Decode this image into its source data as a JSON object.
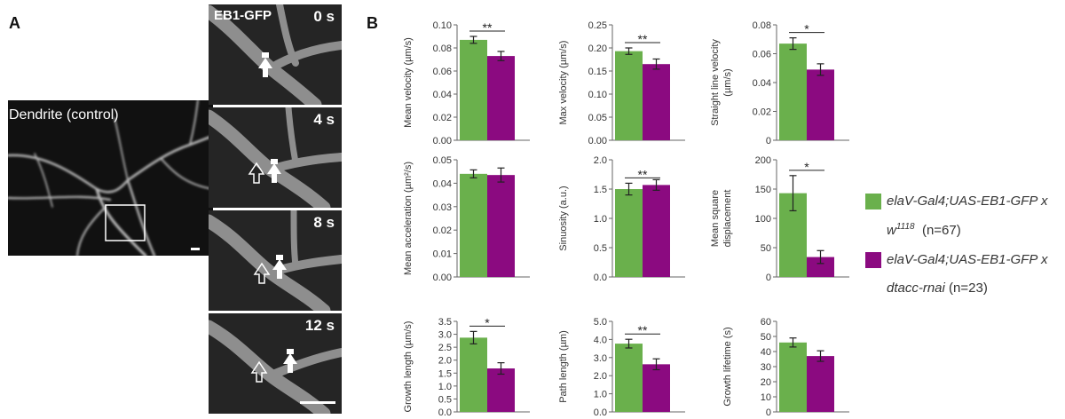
{
  "panel_a_label": "A",
  "panel_b_label": "B",
  "micrograph_title": "Dendrite (control)",
  "timelapse_title": "EB1-GFP",
  "frames": [
    "0 s",
    "4 s",
    "8 s",
    "12 s"
  ],
  "legend": {
    "control_line1": "elaV-Gal4;UAS-EB1-GFP x",
    "control_line2_genotype": "w",
    "control_line2_sup": "1118",
    "control_n": "(n=67)",
    "rnai_line1": "elaV-Gal4;UAS-EB1-GFP x",
    "rnai_line2_genotype": "dtacc-rnai",
    "rnai_n": "(n=23)"
  },
  "colors": {
    "control": "#6ab04c",
    "rnai": "#8b0a80"
  },
  "chart_data": [
    {
      "type": "bar",
      "ylabel_lines": [
        "Mean velocity (µm/s)"
      ],
      "ylim": [
        0,
        0.1
      ],
      "ticks": [
        "0.00",
        "0.02",
        "0.04",
        "0.06",
        "0.08",
        "0.10"
      ],
      "values": [
        0.087,
        0.073
      ],
      "errors": [
        0.003,
        0.004
      ],
      "sig": "**"
    },
    {
      "type": "bar",
      "ylabel_lines": [
        "Max velocity (µm/s)"
      ],
      "ylim": [
        0,
        0.25
      ],
      "ticks": [
        "0.00",
        "0.05",
        "0.10",
        "0.15",
        "0.20",
        "0.25"
      ],
      "values": [
        0.193,
        0.165
      ],
      "errors": [
        0.007,
        0.011
      ],
      "sig": "**"
    },
    {
      "type": "bar",
      "ylabel_lines": [
        "Straight line velocity",
        "(µm/s)"
      ],
      "ylim": [
        0,
        0.08
      ],
      "ticks": [
        "0",
        "0.02",
        "0.04",
        "0.06",
        "0.08"
      ],
      "values": [
        0.067,
        0.049
      ],
      "errors": [
        0.004,
        0.004
      ],
      "sig": "*"
    },
    {
      "type": "bar",
      "ylabel_lines": [
        "Mean acceleration (µm²/s)"
      ],
      "ylim": [
        0,
        0.05
      ],
      "ticks": [
        "0.00",
        "0.01",
        "0.02",
        "0.03",
        "0.04",
        "0.05"
      ],
      "values": [
        0.044,
        0.0435
      ],
      "errors": [
        0.0017,
        0.003
      ],
      "sig": ""
    },
    {
      "type": "bar",
      "ylabel_lines": [
        "Sinuosity (a.u.)"
      ],
      "ylim": [
        0,
        2.0
      ],
      "ticks": [
        "0.0",
        "0.5",
        "1.0",
        "1.5",
        "2.0"
      ],
      "values": [
        1.5,
        1.57
      ],
      "errors": [
        0.1,
        0.09
      ],
      "sig": "**"
    },
    {
      "type": "bar",
      "ylabel_lines": [
        "Mean square",
        "displacement"
      ],
      "ylim": [
        0,
        200
      ],
      "ticks": [
        "0",
        "50",
        "100",
        "150",
        "200"
      ],
      "values": [
        143,
        34
      ],
      "errors": [
        30,
        11
      ],
      "sig": "*"
    },
    {
      "type": "bar",
      "ylabel_lines": [
        "Growth length (µm/s)"
      ],
      "ylim": [
        0,
        3.5
      ],
      "ticks": [
        "0.0",
        "0.5",
        "1.0",
        "1.5",
        "2.0",
        "2.5",
        "3.0",
        "3.5"
      ],
      "values": [
        2.87,
        1.68
      ],
      "errors": [
        0.24,
        0.22
      ],
      "sig": "*"
    },
    {
      "type": "bar",
      "ylabel_lines": [
        "Path length (µm)"
      ],
      "ylim": [
        0,
        5.0
      ],
      "ticks": [
        "0.0",
        "1.0",
        "2.0",
        "3.0",
        "4.0",
        "5.0"
      ],
      "values": [
        3.77,
        2.63
      ],
      "errors": [
        0.24,
        0.3
      ],
      "sig": "**"
    },
    {
      "type": "bar",
      "ylabel_lines": [
        "Growth lifetime (s)"
      ],
      "ylim": [
        0,
        60
      ],
      "ticks": [
        "0",
        "10",
        "20",
        "30",
        "40",
        "50",
        "60"
      ],
      "values": [
        46,
        37
      ],
      "errors": [
        3,
        3.5
      ],
      "sig": ""
    }
  ]
}
